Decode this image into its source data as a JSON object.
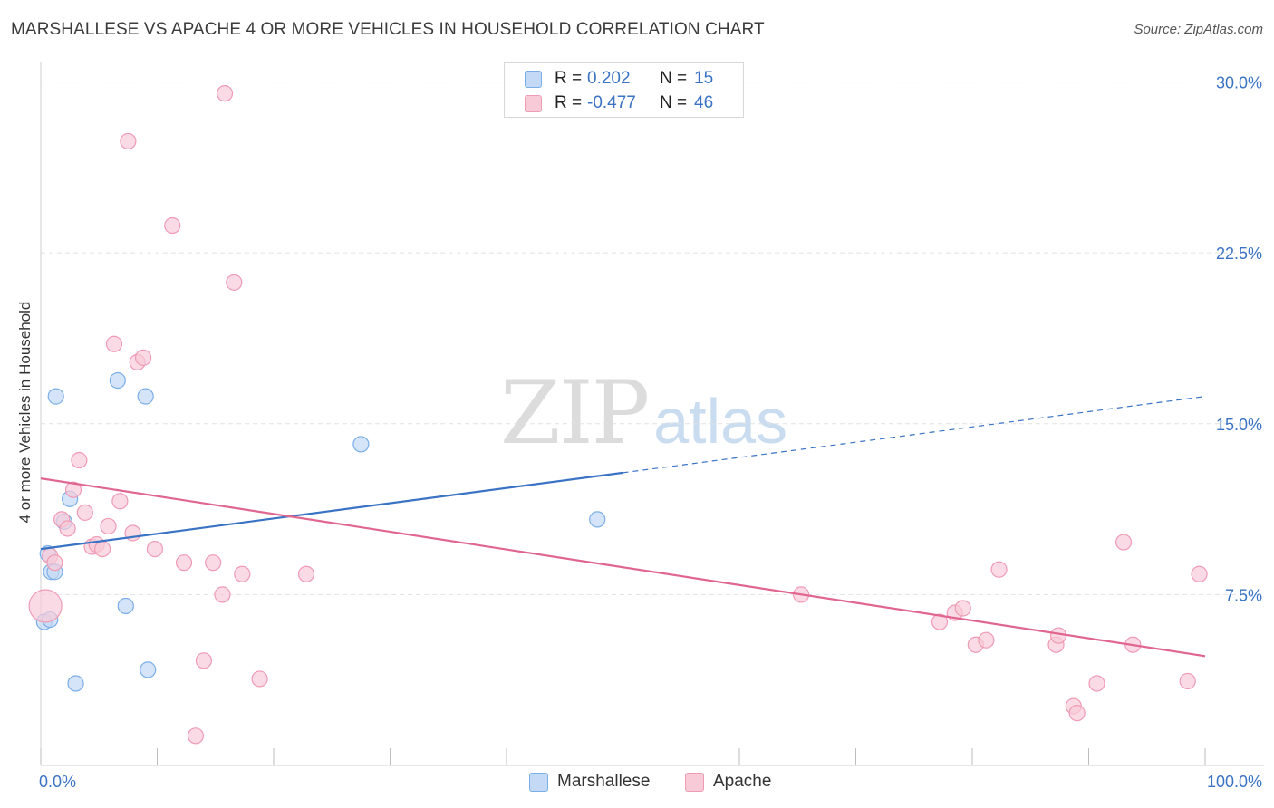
{
  "title": "MARSHALLESE VS APACHE 4 OR MORE VEHICLES IN HOUSEHOLD CORRELATION CHART",
  "source": "Source: ZipAtlas.com",
  "watermark": {
    "zip": "ZIP",
    "atlas": "atlas"
  },
  "legend": {
    "rows": [
      {
        "r_label": "R =",
        "r_value": "0.202",
        "n_label": "N =",
        "n_value": "15"
      },
      {
        "r_label": "R =",
        "r_value": "-0.477",
        "n_label": "N =",
        "n_value": "46"
      }
    ]
  },
  "chart_data": {
    "type": "scatter",
    "title": "MARSHALLESE VS APACHE 4 OR MORE VEHICLES IN HOUSEHOLD CORRELATION CHART",
    "xlabel": "",
    "ylabel": "4 or more Vehicles in Household",
    "xlim": [
      0,
      100
    ],
    "ylim": [
      0,
      30.5
    ],
    "x_tick_labels": [
      "0.0%",
      "100.0%"
    ],
    "y_ticks": [
      7.5,
      15.0,
      22.5,
      30.0
    ],
    "y_tick_labels": [
      "7.5%",
      "15.0%",
      "22.5%",
      "30.0%"
    ],
    "grid": true,
    "legend_position": "bottom",
    "series": [
      {
        "name": "Marshallese",
        "color": "#7aaee8",
        "fill": "#c3d9f5",
        "line_color": "#3b73c4",
        "r": "0.202",
        "n": "15",
        "points": [
          [
            0.3,
            6.3
          ],
          [
            0.6,
            9.3
          ],
          [
            0.8,
            6.4
          ],
          [
            0.9,
            8.5
          ],
          [
            1.2,
            8.5
          ],
          [
            1.3,
            16.2
          ],
          [
            2.0,
            10.7
          ],
          [
            2.5,
            11.7
          ],
          [
            3.0,
            3.6
          ],
          [
            6.6,
            16.9
          ],
          [
            7.3,
            7.0
          ],
          [
            9.0,
            16.2
          ],
          [
            9.2,
            4.2
          ],
          [
            27.5,
            14.1
          ],
          [
            47.8,
            10.8
          ]
        ],
        "trend": {
          "x0": 0,
          "y0": 9.5,
          "x1": 100,
          "y1": 16.2,
          "solid_until": 50
        }
      },
      {
        "name": "Apache",
        "color": "#ef9bb4",
        "fill": "#f8cad8",
        "line_color": "#e0668f",
        "r": "-0.477",
        "n": "46",
        "points": [
          [
            0.4,
            7.0
          ],
          [
            0.8,
            9.2
          ],
          [
            1.2,
            8.9
          ],
          [
            1.8,
            10.8
          ],
          [
            2.3,
            10.4
          ],
          [
            2.8,
            12.1
          ],
          [
            3.3,
            13.4
          ],
          [
            3.8,
            11.1
          ],
          [
            4.4,
            9.6
          ],
          [
            4.8,
            9.7
          ],
          [
            5.3,
            9.5
          ],
          [
            5.8,
            10.5
          ],
          [
            6.3,
            18.5
          ],
          [
            6.8,
            11.6
          ],
          [
            7.5,
            27.4
          ],
          [
            7.9,
            10.2
          ],
          [
            8.3,
            17.7
          ],
          [
            8.8,
            17.9
          ],
          [
            9.8,
            9.5
          ],
          [
            11.3,
            23.7
          ],
          [
            12.3,
            8.9
          ],
          [
            13.3,
            1.3
          ],
          [
            14.0,
            4.6
          ],
          [
            14.8,
            8.9
          ],
          [
            15.6,
            7.5
          ],
          [
            15.8,
            29.5
          ],
          [
            16.6,
            21.2
          ],
          [
            17.3,
            8.4
          ],
          [
            18.8,
            3.8
          ],
          [
            22.8,
            8.4
          ],
          [
            65.3,
            7.5
          ],
          [
            77.2,
            6.3
          ],
          [
            78.5,
            6.7
          ],
          [
            79.2,
            6.9
          ],
          [
            80.3,
            5.3
          ],
          [
            81.2,
            5.5
          ],
          [
            82.3,
            8.6
          ],
          [
            87.2,
            5.3
          ],
          [
            87.4,
            5.7
          ],
          [
            88.7,
            2.6
          ],
          [
            89.0,
            2.3
          ],
          [
            90.7,
            3.6
          ],
          [
            93.0,
            9.8
          ],
          [
            93.8,
            5.3
          ],
          [
            98.5,
            3.7
          ],
          [
            99.5,
            8.4
          ]
        ],
        "trend": {
          "x0": 0,
          "y0": 12.6,
          "x1": 100,
          "y1": 4.8,
          "solid_until": 100
        }
      }
    ]
  }
}
